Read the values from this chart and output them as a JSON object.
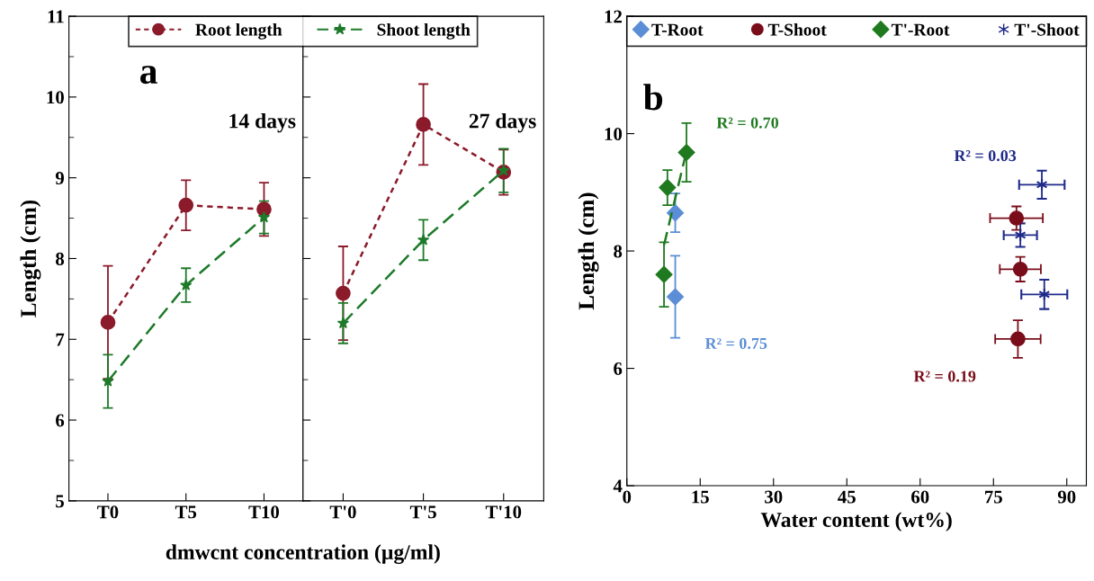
{
  "chart_data": [
    {
      "type": "line",
      "categories": [
        "T0",
        "T5",
        "T10"
      ],
      "ylim": [
        5,
        11
      ],
      "yticks": [
        5,
        6,
        7,
        8,
        9,
        10,
        11
      ],
      "ylabel": "Length (cm)",
      "xlabel": "dmwcnt concentration (µg/ml)",
      "legend": "top",
      "annotations": [
        "a",
        "14 days"
      ],
      "series": [
        {
          "name": "Root length",
          "color": "#8b1a2a",
          "marker": "circle",
          "line_style": "dotted",
          "values": [
            7.21,
            8.66,
            8.61
          ],
          "errors": [
            0.7,
            0.31,
            0.33
          ]
        },
        {
          "name": "Shoot length",
          "color": "#1e7a2a",
          "marker": "star",
          "line_style": "dashed",
          "values": [
            6.48,
            7.67,
            8.51
          ],
          "errors": [
            0.33,
            0.21,
            0.2
          ]
        }
      ]
    },
    {
      "type": "line",
      "categories": [
        "T'0",
        "T'5",
        "T'10"
      ],
      "ylim": [
        5,
        11
      ],
      "yticks": [
        5,
        6,
        7,
        8,
        9,
        10,
        11
      ],
      "tick_labels": "x",
      "annotations": [
        "27 days"
      ],
      "series": [
        {
          "color": "#8b1a2a",
          "marker": "circle",
          "line_style": "dotted",
          "values": [
            7.57,
            9.66,
            9.07
          ],
          "errors": [
            0.58,
            0.5,
            0.28
          ]
        },
        {
          "color": "#1e7a2a",
          "marker": "star",
          "line_style": "dashed",
          "values": [
            7.2,
            8.23,
            9.09
          ],
          "errors": [
            0.25,
            0.25,
            0.27
          ]
        }
      ]
    },
    {
      "type": "scatter",
      "xlim": [
        0,
        94
      ],
      "xticks": [
        0,
        15,
        30,
        45,
        60,
        75,
        90
      ],
      "ylim": [
        4,
        12
      ],
      "yticks": [
        4,
        6,
        8,
        10,
        12
      ],
      "xlabel": "Water content (wt%)",
      "ylabel": "Length (cm)",
      "legend": "top",
      "annotations": [
        "b",
        "R² = 0.70",
        "R² = 0.75",
        "R² = 0.03",
        "R² = 0.19"
      ],
      "series": [
        {
          "name": "T-Root",
          "color": "#5b8ed6",
          "marker": "diamond",
          "x": [
            9.9,
            9.9
          ],
          "values": [
            8.65,
            7.22
          ],
          "errors": [
            0.33,
            0.7
          ]
        },
        {
          "name": "T-Shoot",
          "color": "#7a0d1a",
          "marker": "circle",
          "x": [
            79.7,
            80.5,
            80.0
          ],
          "values": [
            8.56,
            7.69,
            6.5
          ],
          "errors": [
            0.2,
            0.21,
            0.32
          ],
          "xerrors": [
            5.4,
            4.2,
            4.65
          ]
        },
        {
          "name": "T'-Root",
          "color": "#1f7a1f",
          "marker": "diamond",
          "x": [
            12.2,
            8.3,
            7.6
          ],
          "values": [
            9.68,
            9.08,
            7.6
          ],
          "errors": [
            0.5,
            0.3,
            0.55
          ]
        },
        {
          "name": "T'-Shoot",
          "color": "#1f2a8a",
          "marker": "cross",
          "x": [
            84.9,
            80.5,
            85.4
          ],
          "values": [
            9.13,
            8.27,
            7.26
          ],
          "errors": [
            0.24,
            0.2,
            0.25
          ],
          "xerrors": [
            4.65,
            3.4,
            4.7
          ]
        },
        {
          "type": "line",
          "color": "#1f7a1f",
          "line_style": "dashed",
          "marker": "none",
          "x": [
            7.6,
            12.2
          ],
          "values": [
            8.1,
            9.7
          ]
        }
      ]
    }
  ]
}
